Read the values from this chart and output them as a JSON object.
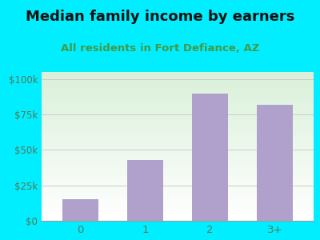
{
  "title": "Median family income by earners",
  "subtitle": "All residents in Fort Defiance, AZ",
  "categories": [
    "0",
    "1",
    "2",
    "3+"
  ],
  "values": [
    15000,
    43000,
    90000,
    82000
  ],
  "bar_color": "#b0a0cc",
  "title_fontsize": 13,
  "subtitle_fontsize": 9.5,
  "background_color": "#00eeff",
  "yticks": [
    0,
    25000,
    50000,
    75000,
    100000
  ],
  "ytick_labels": [
    "$0",
    "$25k",
    "$50k",
    "$75k",
    "$100k"
  ],
  "ylim": [
    0,
    105000
  ],
  "grid_color": "#cccccc",
  "tick_color": "#557755",
  "title_color": "#111111",
  "subtitle_color": "#449944"
}
